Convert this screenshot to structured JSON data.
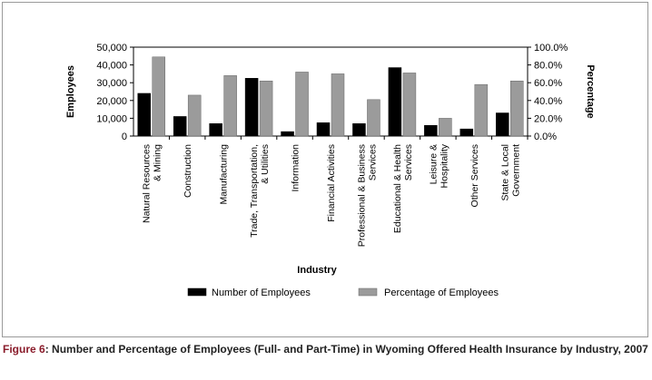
{
  "caption": {
    "lead": "Figure 6",
    "sep": ": ",
    "text": "Number and Percentage of Employees (Full- and Part-Time) in Wyoming Offered Health Insurance by Industry, 2007"
  },
  "chart_data": {
    "type": "bar",
    "title": "",
    "xlabel": "Industry",
    "ylabel": "Employees",
    "y2label": "Percentage",
    "ylim": [
      0,
      50000
    ],
    "y2lim": [
      0,
      100
    ],
    "yticks": [
      "0",
      "10,000",
      "20,000",
      "30,000",
      "40,000",
      "50,000"
    ],
    "y2ticks": [
      "0.0%",
      "20.0%",
      "40.0%",
      "60.0%",
      "80.0%",
      "100.0%"
    ],
    "grid": false,
    "legend_position": "bottom",
    "categories": [
      [
        "Natural Resources",
        "& Mining"
      ],
      [
        "Construction"
      ],
      [
        "Manufacturing"
      ],
      [
        "Trade, Transportation,",
        "& Utilities"
      ],
      [
        "Information"
      ],
      [
        "Financial Activities"
      ],
      [
        "Professional & Business",
        "Services"
      ],
      [
        "Educational & Health",
        "Services"
      ],
      [
        "Leisure &",
        "Hospitality"
      ],
      [
        "Other Services"
      ],
      [
        "State & Local",
        "Government"
      ]
    ],
    "series": [
      {
        "name": "Number of Employees",
        "axis": "left",
        "color": "#000000",
        "values": [
          24000,
          11000,
          7000,
          32500,
          2500,
          7500,
          7000,
          38500,
          6000,
          4000,
          13000
        ]
      },
      {
        "name": "Percentage of Employees",
        "axis": "right",
        "color": "#9b9b9b",
        "values": [
          89,
          46,
          68,
          62,
          72,
          70,
          41,
          71,
          20,
          58,
          62
        ]
      }
    ]
  }
}
